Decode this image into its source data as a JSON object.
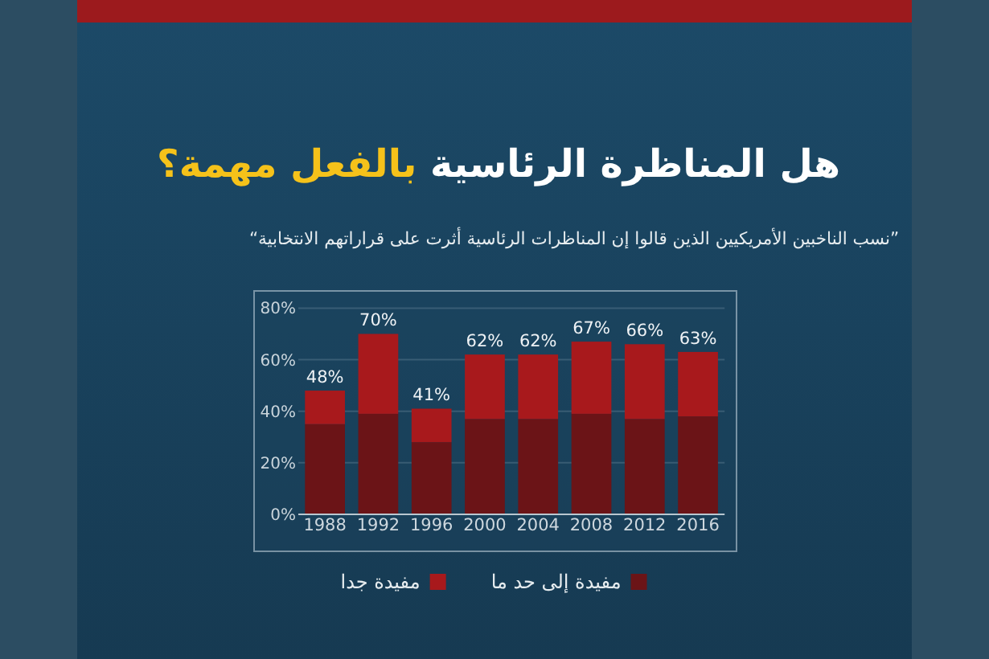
{
  "chart_data": {
    "type": "bar",
    "title": "هل المناظرة الرئاسية بالفعل مهمة؟",
    "subtitle": "”نسب الناخبين الأمريكيين الذين قالوا إن المناظرات الرئاسية أثرت على قراراتهم الانتخابية“",
    "categories": [
      "1988",
      "1992",
      "1996",
      "2000",
      "2004",
      "2008",
      "2012",
      "2016"
    ],
    "series": [
      {
        "name": "مفيدة إلى حد ما",
        "color": "#6b1417",
        "values": [
          35,
          39,
          28,
          37,
          37,
          39,
          37,
          38
        ]
      },
      {
        "name": "مفيدة جدا",
        "color": "#a8191c",
        "values": [
          13,
          31,
          13,
          25,
          25,
          28,
          29,
          25
        ]
      }
    ],
    "stacked": true,
    "totals": [
      "48%",
      "70%",
      "41%",
      "62%",
      "62%",
      "67%",
      "66%",
      "63%"
    ],
    "ylim": [
      0,
      80
    ],
    "yticks": [
      {
        "value": 0,
        "label": "0%"
      },
      {
        "value": 20,
        "label": "20%"
      },
      {
        "value": 40,
        "label": "40%"
      },
      {
        "value": 60,
        "label": "60%"
      },
      {
        "value": 80,
        "label": "80%"
      }
    ],
    "grid": "y",
    "legend": "bottom"
  }
}
